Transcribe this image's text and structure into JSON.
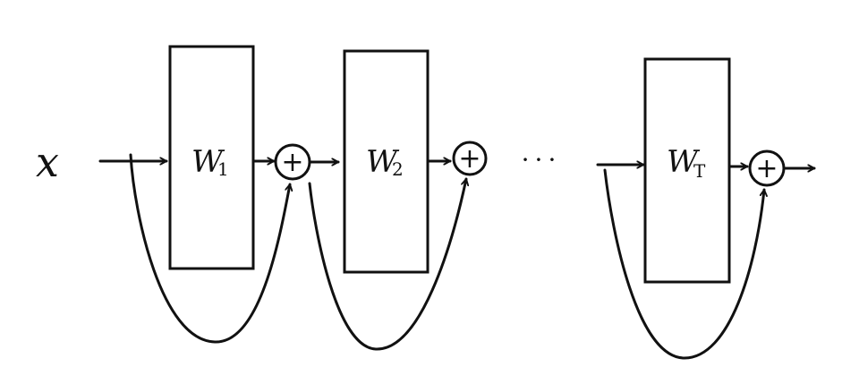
{
  "input_label": "x",
  "ellipsis": "···",
  "plus_symbol": "+",
  "blocks": [
    {
      "label": "W",
      "subscript": "1"
    },
    {
      "label": "W",
      "subscript": "2"
    },
    {
      "label": "W",
      "subscript": "T"
    }
  ],
  "ink_color": "#111111"
}
